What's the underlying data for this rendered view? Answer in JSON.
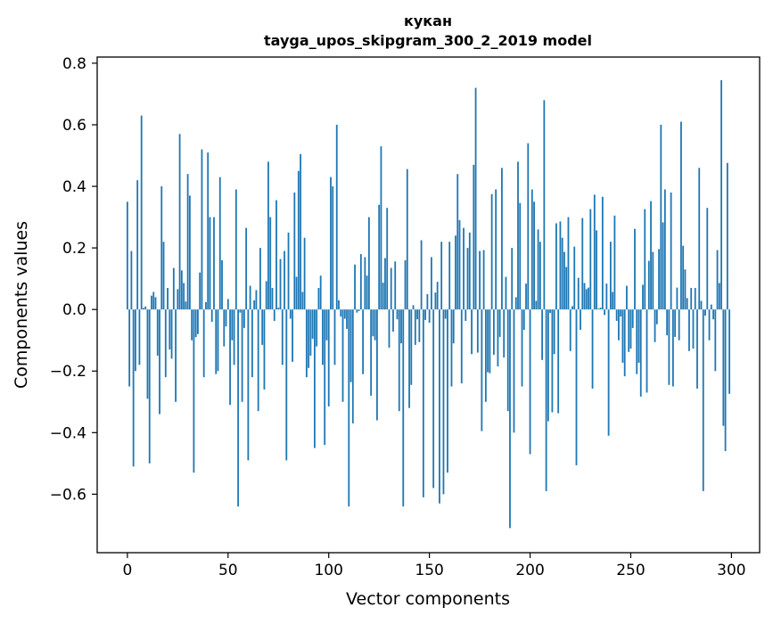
{
  "chart_data": {
    "type": "bar",
    "title": "кукан",
    "subtitle": "tayga_upos_skipgram_300_2_2019 model",
    "xlabel": "Vector components",
    "ylabel": "Components values",
    "xlim": [
      -15,
      314
    ],
    "ylim": [
      -0.79,
      0.82
    ],
    "grid": false,
    "bar_color": "#1f77b4",
    "xticks": [
      0,
      50,
      100,
      150,
      200,
      250,
      300
    ],
    "xtick_labels": [
      "0",
      "50",
      "100",
      "150",
      "200",
      "250",
      "300"
    ],
    "yticks": [
      -0.6,
      -0.4,
      -0.2,
      0.0,
      0.2,
      0.4,
      0.6,
      0.8
    ],
    "ytick_labels": [
      "−0.6",
      "−0.4",
      "−0.2",
      "0.0",
      "0.2",
      "0.4",
      "0.6",
      "0.8"
    ],
    "values": [
      0.35,
      -0.25,
      0.19,
      -0.51,
      -0.2,
      0.42,
      -0.18,
      0.63,
      0.005,
      0.01,
      -0.29,
      -0.5,
      0.045,
      0.057,
      0.04,
      -0.15,
      -0.34,
      0.4,
      0.22,
      -0.22,
      0.07,
      -0.13,
      -0.16,
      0.135,
      -0.3,
      0.066,
      0.57,
      0.127,
      0.086,
      0.026,
      0.44,
      0.37,
      -0.1,
      -0.53,
      -0.09,
      -0.08,
      0.12,
      0.52,
      -0.22,
      0.024,
      0.51,
      0.3,
      -0.04,
      0.3,
      -0.21,
      -0.2,
      0.43,
      0.16,
      -0.12,
      -0.055,
      0.034,
      -0.31,
      -0.1,
      -0.18,
      0.39,
      -0.64,
      -0.01,
      -0.3,
      -0.06,
      0.265,
      -0.49,
      0.077,
      -0.22,
      0.03,
      0.063,
      -0.33,
      0.2,
      -0.115,
      -0.26,
      0.092,
      0.48,
      0.3,
      0.07,
      -0.037,
      0.355,
      0.006,
      0.164,
      -0.18,
      0.19,
      -0.49,
      0.25,
      -0.03,
      -0.17,
      0.38,
      0.106,
      0.45,
      0.505,
      0.057,
      0.233,
      -0.22,
      -0.19,
      -0.15,
      -0.095,
      -0.45,
      -0.12,
      0.07,
      0.11,
      -0.18,
      -0.44,
      -0.1,
      -0.315,
      0.43,
      0.4,
      -0.18,
      0.6,
      0.03,
      -0.023,
      -0.3,
      -0.03,
      -0.063,
      -0.64,
      -0.236,
      -0.37,
      0.146,
      -0.01,
      -0.005,
      0.18,
      -0.21,
      0.17,
      0.11,
      0.3,
      -0.28,
      -0.087,
      -0.1,
      -0.36,
      0.34,
      0.53,
      0.087,
      0.167,
      0.33,
      -0.124,
      0.135,
      -0.072,
      0.156,
      -0.032,
      -0.33,
      -0.11,
      -0.64,
      0.16,
      0.456,
      -0.32,
      -0.245,
      0.014,
      -0.115,
      -0.032,
      -0.106,
      0.225,
      -0.61,
      -0.034,
      0.05,
      -0.043,
      0.17,
      -0.58,
      0.055,
      0.09,
      -0.63,
      0.22,
      -0.6,
      -0.03,
      -0.53,
      0.22,
      -0.25,
      -0.11,
      0.24,
      0.44,
      0.29,
      -0.24,
      0.265,
      -0.037,
      0.2,
      0.25,
      -0.145,
      0.47,
      0.72,
      -0.14,
      0.19,
      -0.395,
      0.193,
      -0.3,
      -0.204,
      -0.207,
      0.375,
      -0.147,
      0.39,
      -0.185,
      -0.089,
      0.46,
      -0.156,
      0.106,
      -0.33,
      -0.71,
      0.2,
      -0.4,
      0.04,
      0.48,
      0.346,
      -0.25,
      -0.066,
      0.084,
      0.54,
      -0.47,
      0.39,
      0.35,
      0.028,
      0.26,
      0.22,
      -0.164,
      0.68,
      -0.59,
      -0.363,
      -0.011,
      -0.334,
      -0.145,
      0.28,
      -0.337,
      0.286,
      0.233,
      0.187,
      0.138,
      0.3,
      -0.135,
      0.011,
      0.204,
      -0.506,
      0.103,
      -0.066,
      0.297,
      0.086,
      0.066,
      0.071,
      0.326,
      -0.257,
      0.373,
      0.257,
      0.003,
      0.006,
      0.366,
      -0.018,
      0.084,
      -0.41,
      0.22,
      0.057,
      0.305,
      -0.037,
      -0.1,
      -0.023,
      -0.173,
      -0.217,
      0.077,
      -0.138,
      -0.127,
      -0.06,
      0.262,
      -0.21,
      -0.173,
      -0.283,
      0.08,
      0.326,
      -0.27,
      0.158,
      0.352,
      0.187,
      -0.106,
      -0.048,
      0.196,
      0.6,
      0.283,
      0.39,
      -0.084,
      -0.245,
      0.38,
      -0.25,
      -0.089,
      0.071,
      -0.1,
      0.61,
      0.207,
      0.13,
      0.037,
      -0.135,
      0.07,
      -0.127,
      0.07,
      -0.257,
      0.46,
      0.028,
      -0.59,
      -0.02,
      0.33,
      -0.1,
      0.016,
      -0.032,
      -0.2,
      0.193,
      0.086,
      0.745,
      -0.378,
      -0.46,
      0.476,
      -0.274
    ]
  }
}
